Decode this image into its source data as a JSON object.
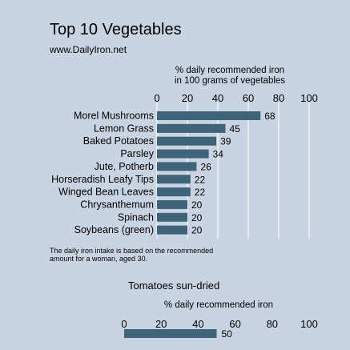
{
  "chart_data": [
    {
      "type": "bar",
      "orientation": "horizontal",
      "title": "Top 10 Vegetables",
      "subtitle": "www.DailyIron.net",
      "xlabel_lines": [
        "% daily recommended iron",
        "in 100 grams of vegetables"
      ],
      "xlim": [
        0,
        100
      ],
      "xticks": [
        "0",
        "20",
        "40",
        "60",
        "80",
        "100"
      ],
      "xtick_values": [
        0,
        20,
        40,
        60,
        80,
        100
      ],
      "grid": true,
      "categories": [
        "Morel Mushrooms",
        "Lemon Grass",
        "Baked Potatoes",
        "Parsley",
        "Jute, Potherb",
        "Horseradish Leafy Tips",
        "Winged Bean Leaves",
        "Chrysanthemum",
        "Spinach",
        "Soybeans (green)"
      ],
      "values": [
        68,
        45,
        39,
        34,
        26,
        22,
        22,
        20,
        20,
        20
      ],
      "value_labels": [
        "68",
        "45",
        "39",
        "34",
        "26",
        "22",
        "22",
        "20",
        "20",
        "20"
      ],
      "footnote_lines": [
        "The daily iron intake is based on the recommended",
        "amount for a woman, aged 30."
      ]
    },
    {
      "type": "bar",
      "orientation": "horizontal",
      "title": "Tomatoes sun-dried",
      "xlabel": "% daily recommended iron",
      "xlim": [
        0,
        100
      ],
      "xticks": [
        "0",
        "20",
        "40",
        "60",
        "80",
        "100"
      ],
      "xtick_values": [
        0,
        20,
        40,
        60,
        80,
        100
      ],
      "values": [
        50
      ],
      "value_labels": [
        "50"
      ]
    }
  ],
  "colors": {
    "background": "#c8d4e1",
    "bar": "#3f6479",
    "grid": "#ffffff"
  }
}
